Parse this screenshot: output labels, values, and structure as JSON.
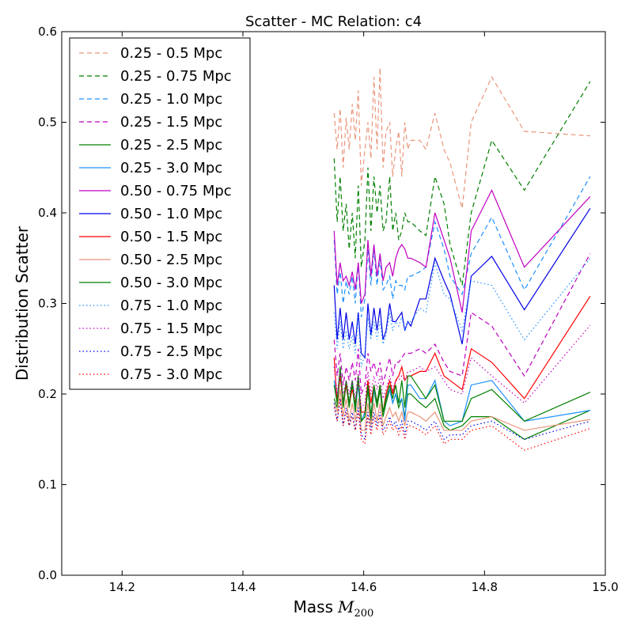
{
  "chart_data": {
    "type": "line",
    "title": "Scatter - MC Relation: c4",
    "xlabel": "Mass",
    "xlabel_math": "M",
    "xlabel_sub": "200",
    "ylabel": "Distribution Scatter",
    "xlim": [
      14.1,
      15.0
    ],
    "ylim": [
      0.0,
      0.6
    ],
    "xticks": [
      "14.2",
      "14.4",
      "14.6",
      "14.8",
      "15.0"
    ],
    "yticks": [
      "0.0",
      "0.1",
      "0.2",
      "0.3",
      "0.4",
      "0.5",
      "0.6"
    ],
    "grid": false,
    "legend_position": "top-left",
    "x": [
      14.551,
      14.556,
      14.561,
      14.566,
      14.571,
      14.576,
      14.581,
      14.586,
      14.591,
      14.596,
      14.602,
      14.607,
      14.612,
      14.617,
      14.622,
      14.627,
      14.632,
      14.637,
      14.643,
      14.648,
      14.653,
      14.658,
      14.663,
      14.668,
      14.673,
      14.678,
      14.693,
      14.703,
      14.718,
      14.733,
      14.743,
      14.763,
      14.778,
      14.812,
      14.866,
      14.975
    ],
    "series": [
      {
        "name": "0.25 - 0.5 Mpc",
        "color": "#e9967a",
        "style": "dashed",
        "values": [
          0.51,
          0.47,
          0.515,
          0.45,
          0.505,
          0.47,
          0.52,
          0.48,
          0.535,
          0.43,
          0.47,
          0.5,
          0.46,
          0.55,
          0.47,
          0.56,
          0.45,
          0.49,
          0.5,
          0.44,
          0.47,
          0.49,
          0.44,
          0.5,
          0.47,
          0.48,
          0.48,
          0.47,
          0.51,
          0.47,
          0.455,
          0.405,
          0.5,
          0.55,
          0.49,
          0.485
        ]
      },
      {
        "name": "0.25 - 0.75 Mpc",
        "color": "#008000",
        "style": "dashed",
        "values": [
          0.46,
          0.39,
          0.44,
          0.38,
          0.41,
          0.36,
          0.4,
          0.35,
          0.43,
          0.34,
          0.37,
          0.45,
          0.38,
          0.44,
          0.4,
          0.43,
          0.38,
          0.39,
          0.44,
          0.38,
          0.4,
          0.37,
          0.38,
          0.4,
          0.39,
          0.39,
          0.38,
          0.375,
          0.44,
          0.41,
          0.365,
          0.32,
          0.4,
          0.48,
          0.425,
          0.545
        ]
      },
      {
        "name": "0.25 - 1.0 Mpc",
        "color": "#1e90ff",
        "style": "dashed",
        "values": [
          0.37,
          0.31,
          0.335,
          0.3,
          0.325,
          0.31,
          0.33,
          0.3,
          0.345,
          0.285,
          0.305,
          0.36,
          0.32,
          0.36,
          0.32,
          0.35,
          0.315,
          0.32,
          0.33,
          0.305,
          0.325,
          0.32,
          0.32,
          0.315,
          0.33,
          0.33,
          0.335,
          0.34,
          0.39,
          0.36,
          0.33,
          0.31,
          0.355,
          0.395,
          0.315,
          0.44
        ]
      },
      {
        "name": "0.25 - 1.5 Mpc",
        "color": "#bf00bf",
        "style": "dashed",
        "values": [
          0.26,
          0.22,
          0.245,
          0.21,
          0.23,
          0.215,
          0.235,
          0.215,
          0.25,
          0.2,
          0.21,
          0.245,
          0.225,
          0.235,
          0.22,
          0.235,
          0.21,
          0.225,
          0.24,
          0.22,
          0.235,
          0.235,
          0.24,
          0.245,
          0.245,
          0.245,
          0.25,
          0.245,
          0.255,
          0.235,
          0.225,
          0.22,
          0.29,
          0.275,
          0.22,
          0.355
        ]
      },
      {
        "name": "0.25 - 2.5 Mpc",
        "color": "#008000",
        "style": "solid",
        "values": [
          0.195,
          0.185,
          0.225,
          0.185,
          0.21,
          0.185,
          0.21,
          0.18,
          0.215,
          0.17,
          0.175,
          0.205,
          0.17,
          0.205,
          0.185,
          0.205,
          0.175,
          0.19,
          0.205,
          0.19,
          0.2,
          0.185,
          0.195,
          0.175,
          0.2,
          0.2,
          0.19,
          0.185,
          0.195,
          0.165,
          0.16,
          0.165,
          0.175,
          0.175,
          0.15,
          0.182
        ]
      },
      {
        "name": "0.25 - 3.0 Mpc",
        "color": "#1e90ff",
        "style": "solid",
        "values": [
          0.215,
          0.195,
          0.225,
          0.19,
          0.21,
          0.19,
          0.215,
          0.185,
          0.21,
          0.17,
          0.18,
          0.21,
          0.175,
          0.205,
          0.19,
          0.21,
          0.18,
          0.195,
          0.205,
          0.19,
          0.2,
          0.19,
          0.195,
          0.17,
          0.21,
          0.21,
          0.195,
          0.195,
          0.215,
          0.17,
          0.165,
          0.17,
          0.21,
          0.215,
          0.17,
          0.182
        ]
      },
      {
        "name": "0.50 - 0.75 Mpc",
        "color": "#bf00bf",
        "style": "solid",
        "values": [
          0.38,
          0.32,
          0.345,
          0.325,
          0.33,
          0.32,
          0.335,
          0.315,
          0.345,
          0.3,
          0.31,
          0.37,
          0.33,
          0.365,
          0.33,
          0.355,
          0.325,
          0.34,
          0.345,
          0.33,
          0.35,
          0.36,
          0.365,
          0.36,
          0.35,
          0.35,
          0.345,
          0.34,
          0.4,
          0.37,
          0.35,
          0.29,
          0.38,
          0.425,
          0.34,
          0.418
        ]
      },
      {
        "name": "0.50 - 1.0 Mpc",
        "color": "#0000e6",
        "style": "solid",
        "values": [
          0.32,
          0.26,
          0.295,
          0.26,
          0.29,
          0.26,
          0.28,
          0.255,
          0.29,
          0.245,
          0.24,
          0.3,
          0.265,
          0.295,
          0.27,
          0.295,
          0.26,
          0.27,
          0.3,
          0.28,
          0.28,
          0.285,
          0.29,
          0.27,
          0.28,
          0.275,
          0.305,
          0.305,
          0.35,
          0.325,
          0.31,
          0.255,
          0.33,
          0.352,
          0.293,
          0.405
        ]
      },
      {
        "name": "0.50 - 1.5 Mpc",
        "color": "#ff0000",
        "style": "solid",
        "values": [
          0.24,
          0.19,
          0.22,
          0.19,
          0.21,
          0.19,
          0.205,
          0.19,
          0.215,
          0.18,
          0.18,
          0.215,
          0.19,
          0.21,
          0.19,
          0.21,
          0.18,
          0.2,
          0.215,
          0.2,
          0.215,
          0.22,
          0.23,
          0.215,
          0.22,
          0.22,
          0.225,
          0.225,
          0.245,
          0.22,
          0.215,
          0.205,
          0.25,
          0.235,
          0.195,
          0.308
        ]
      },
      {
        "name": "0.50 - 2.5 Mpc",
        "color": "#e9967a",
        "style": "solid",
        "values": [
          0.19,
          0.18,
          0.205,
          0.175,
          0.195,
          0.17,
          0.19,
          0.17,
          0.195,
          0.16,
          0.16,
          0.19,
          0.165,
          0.19,
          0.17,
          0.19,
          0.165,
          0.175,
          0.185,
          0.175,
          0.18,
          0.17,
          0.18,
          0.165,
          0.18,
          0.18,
          0.175,
          0.17,
          0.18,
          0.16,
          0.16,
          0.16,
          0.17,
          0.175,
          0.16,
          0.172
        ]
      },
      {
        "name": "0.50 - 3.0 Mpc",
        "color": "#008000",
        "style": "solid",
        "values": [
          0.21,
          0.19,
          0.23,
          0.19,
          0.215,
          0.19,
          0.215,
          0.185,
          0.22,
          0.17,
          0.175,
          0.21,
          0.175,
          0.21,
          0.19,
          0.21,
          0.18,
          0.195,
          0.21,
          0.195,
          0.21,
          0.19,
          0.215,
          0.185,
          0.22,
          0.22,
          0.205,
          0.195,
          0.21,
          0.17,
          0.17,
          0.17,
          0.195,
          0.205,
          0.17,
          0.202
        ]
      },
      {
        "name": "0.75 - 1.0 Mpc",
        "color": "#1e90ff",
        "style": "dotted",
        "values": [
          0.29,
          0.25,
          0.28,
          0.25,
          0.27,
          0.25,
          0.265,
          0.245,
          0.285,
          0.23,
          0.245,
          0.285,
          0.26,
          0.28,
          0.26,
          0.28,
          0.255,
          0.265,
          0.29,
          0.27,
          0.28,
          0.275,
          0.285,
          0.27,
          0.28,
          0.28,
          0.295,
          0.29,
          0.345,
          0.31,
          0.305,
          0.27,
          0.325,
          0.32,
          0.26,
          0.35
        ]
      },
      {
        "name": "0.75 - 1.5 Mpc",
        "color": "#bf00bf",
        "style": "dotted",
        "values": [
          0.23,
          0.2,
          0.225,
          0.2,
          0.215,
          0.2,
          0.215,
          0.195,
          0.225,
          0.185,
          0.19,
          0.225,
          0.2,
          0.22,
          0.205,
          0.22,
          0.195,
          0.205,
          0.22,
          0.205,
          0.215,
          0.215,
          0.22,
          0.215,
          0.225,
          0.225,
          0.23,
          0.225,
          0.23,
          0.215,
          0.205,
          0.2,
          0.24,
          0.22,
          0.19,
          0.276
        ]
      },
      {
        "name": "0.75 - 2.5 Mpc",
        "color": "#0000e6",
        "style": "dotted",
        "values": [
          0.19,
          0.17,
          0.195,
          0.165,
          0.185,
          0.165,
          0.18,
          0.16,
          0.185,
          0.155,
          0.15,
          0.18,
          0.16,
          0.18,
          0.165,
          0.18,
          0.16,
          0.165,
          0.175,
          0.165,
          0.17,
          0.16,
          0.17,
          0.155,
          0.17,
          0.17,
          0.165,
          0.16,
          0.17,
          0.15,
          0.155,
          0.155,
          0.165,
          0.17,
          0.15,
          0.17
        ]
      },
      {
        "name": "0.75 - 3.0 Mpc",
        "color": "#ff0000",
        "style": "dotted",
        "values": [
          0.185,
          0.17,
          0.195,
          0.165,
          0.18,
          0.165,
          0.175,
          0.16,
          0.18,
          0.15,
          0.145,
          0.175,
          0.155,
          0.175,
          0.16,
          0.175,
          0.155,
          0.16,
          0.17,
          0.16,
          0.165,
          0.155,
          0.165,
          0.15,
          0.165,
          0.165,
          0.16,
          0.155,
          0.165,
          0.145,
          0.15,
          0.15,
          0.16,
          0.165,
          0.138,
          0.162
        ]
      }
    ]
  }
}
